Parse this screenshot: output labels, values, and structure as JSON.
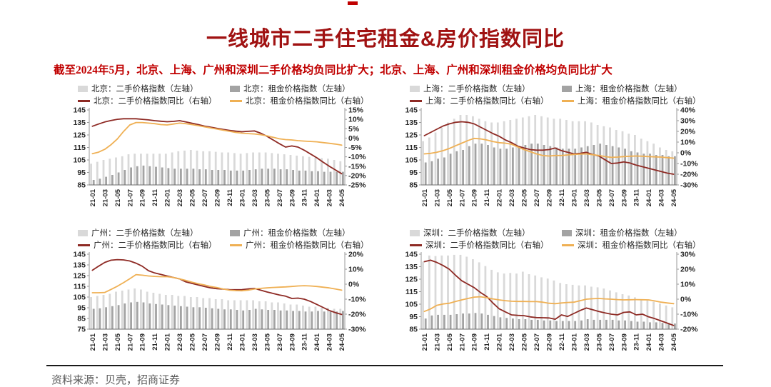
{
  "title": "一线城市二手住宅租金&房价指数同比",
  "subtitle": "截至2024年5月，北京、上海、广州和深圳二手价格均负同比扩大；北京、上海、广州和深圳租金价格均负同比扩大",
  "footer_source": "资料来源：贝壳，招商证券",
  "colors": {
    "title": "#a01212",
    "subtitle": "#c00000",
    "secondhand_bar": "#d9d9d9",
    "rent_bar": "#a3a3a3",
    "secondhand_line": "#8e2a24",
    "rent_line": "#efb054",
    "axis_text": "#262626",
    "axis_line": "#9a9a9a"
  },
  "x_axis": {
    "months": [
      "21-01",
      "21-02",
      "21-03",
      "21-04",
      "21-05",
      "21-06",
      "21-07",
      "21-08",
      "21-09",
      "21-10",
      "21-11",
      "21-12",
      "22-01",
      "22-02",
      "22-03",
      "22-04",
      "22-05",
      "22-06",
      "22-07",
      "22-08",
      "22-09",
      "22-10",
      "22-11",
      "22-12",
      "23-01",
      "23-02",
      "23-03",
      "23-04",
      "23-05",
      "23-06",
      "23-07",
      "23-08",
      "23-09",
      "23-10",
      "23-11",
      "23-12",
      "24-01",
      "24-02",
      "24-03",
      "24-04",
      "24-05"
    ],
    "ticks_shown": [
      "21-01",
      "21-03",
      "21-05",
      "21-07",
      "21-09",
      "21-11",
      "22-01",
      "22-03",
      "22-05",
      "22-07",
      "22-09",
      "22-11",
      "23-01",
      "23-03",
      "23-05",
      "23-07",
      "23-09",
      "23-11",
      "24-01",
      "24-03",
      "24-05"
    ]
  },
  "chart_data": [
    {
      "type": "bar",
      "city": "北京",
      "title": "北京二手住宅租金&房价指数同比",
      "left_axis": {
        "min": 85,
        "max": 145,
        "tick_step": 10
      },
      "right_axis": {
        "min": -25,
        "max": 15,
        "tick_step": 5,
        "unit": "%"
      },
      "series": [
        {
          "name": "北京：二手价格指数（左轴）",
          "type": "bar",
          "axis": "left",
          "color": "#d9d9d9",
          "values": [
            102,
            103.5,
            105,
            106,
            107,
            108,
            109.5,
            110,
            110,
            110,
            110,
            110,
            110,
            111,
            112,
            112.5,
            113,
            112.5,
            112,
            112,
            111.5,
            111,
            111,
            110.5,
            110,
            110.5,
            111,
            111,
            111,
            110.5,
            110,
            109.5,
            109,
            108.5,
            108,
            107.5,
            107,
            106.5,
            106,
            105,
            104
          ]
        },
        {
          "name": "北京：租金价格指数（左轴）",
          "type": "bar",
          "axis": "left",
          "color": "#a3a3a3",
          "values": [
            89,
            90,
            91.5,
            93,
            95,
            97,
            99,
            100,
            100.5,
            100,
            99.5,
            99,
            98.5,
            98,
            98,
            98,
            98,
            97.5,
            97.5,
            97,
            97,
            97,
            96.5,
            96.5,
            96.5,
            97,
            97.5,
            98,
            98,
            98,
            97.5,
            97.5,
            97,
            96.5,
            96.5,
            96,
            96,
            95.5,
            95.5,
            95.5,
            95.5
          ]
        },
        {
          "name": "北京：二手价格指数同比（右轴）",
          "type": "line",
          "axis": "right",
          "color": "#8e2a24",
          "values": [
            6.3,
            7.5,
            8.6,
            9.4,
            10,
            10.3,
            10.3,
            10.3,
            10,
            9.7,
            9.3,
            9,
            8.7,
            8.9,
            9.3,
            8.6,
            7.9,
            7.2,
            6.4,
            5.8,
            5.2,
            4.6,
            4.1,
            3.7,
            3.4,
            3.6,
            3.8,
            2.6,
            1,
            -1,
            -3,
            -4.8,
            -4.2,
            -4.8,
            -6.5,
            -8.5,
            -10.5,
            -12.8,
            -15,
            -17,
            -19
          ]
        },
        {
          "name": "北京：租金价格指数同比（右轴）",
          "type": "line",
          "axis": "right",
          "color": "#efb054",
          "values": [
            -8.3,
            -7.5,
            -6,
            -3.5,
            -0.5,
            3.5,
            7,
            8.3,
            8.3,
            8,
            7.7,
            7.2,
            7,
            7.5,
            8,
            7.7,
            7.2,
            6.6,
            6,
            5.4,
            4.8,
            4.2,
            3.6,
            3,
            2.6,
            2.4,
            2.2,
            1.8,
            1.2,
            0.4,
            -0.4,
            -0.8,
            -1,
            -1.4,
            -1.6,
            -1.8,
            -2,
            -2.4,
            -2.8,
            -3.2,
            -3.8
          ]
        }
      ]
    },
    {
      "type": "bar",
      "city": "上海",
      "title": "上海二手住宅租金&房价指数同比",
      "left_axis": {
        "min": 85,
        "max": 145,
        "tick_step": 10
      },
      "right_axis": {
        "min": -30,
        "max": 40,
        "tick_step": 10,
        "unit": "%"
      },
      "series": [
        {
          "name": "上海：二手价格指数（左轴）",
          "type": "bar",
          "axis": "left",
          "color": "#d9d9d9",
          "values": [
            120,
            123,
            127,
            131,
            135,
            138,
            141,
            141,
            140,
            138,
            136,
            135,
            135,
            136,
            137,
            138,
            139,
            140,
            141,
            140,
            139,
            138,
            138,
            137,
            136,
            136,
            136,
            135,
            133,
            132,
            131,
            129,
            128,
            126,
            125,
            122,
            120,
            118,
            115,
            113,
            112
          ]
        },
        {
          "name": "上海：租金价格指数（左轴）",
          "type": "bar",
          "axis": "left",
          "color": "#a3a3a3",
          "values": [
            103,
            104,
            106,
            107,
            110,
            112,
            113,
            116,
            118,
            118,
            117,
            115,
            114,
            114,
            115,
            116,
            117,
            118,
            118,
            117,
            116,
            115,
            114,
            114,
            114,
            115,
            116,
            117,
            118,
            117,
            116,
            115,
            114,
            112,
            111,
            110,
            110,
            109,
            109,
            108,
            108
          ]
        },
        {
          "name": "上海：二手价格指数同比（右轴）",
          "type": "line",
          "axis": "right",
          "color": "#8e2a24",
          "values": [
            16,
            19,
            22,
            25,
            27,
            28.5,
            29,
            28.5,
            27,
            24,
            21,
            18,
            15.5,
            12,
            9.5,
            6.2,
            4.5,
            3,
            2.5,
            2.5,
            3,
            4.5,
            2,
            0.5,
            -1,
            -0.5,
            0.5,
            -1.5,
            -3,
            -6.5,
            -10,
            -9.5,
            -8.5,
            -9.5,
            -11.5,
            -13,
            -14.5,
            -16,
            -17.5,
            -19,
            -20
          ]
        },
        {
          "name": "上海：租金价格指数同比（右轴）",
          "type": "line",
          "axis": "right",
          "color": "#efb054",
          "values": [
            -1,
            -0.5,
            0.5,
            2,
            4,
            6.5,
            9,
            11.5,
            13.5,
            13,
            12,
            10.5,
            9.5,
            9,
            8,
            5.5,
            3,
            1,
            -1,
            -2.5,
            -3,
            -2.5,
            -2.5,
            -2,
            -1.5,
            -1.2,
            -1,
            -1.8,
            -2.5,
            -3.5,
            -4.3,
            -4,
            -3.5,
            -3.2,
            -3,
            -3.2,
            -3.5,
            -3.8,
            -4,
            -4.5,
            -5
          ]
        }
      ]
    },
    {
      "type": "bar",
      "city": "广州",
      "title": "广州二手住宅租金&房价指数同比",
      "left_axis": {
        "min": 75,
        "max": 145,
        "tick_step": 10
      },
      "right_axis": {
        "min": -30,
        "max": 20,
        "tick_step": 10,
        "unit": "%"
      },
      "series": [
        {
          "name": "广州：二手价格指数（左轴）",
          "type": "bar",
          "axis": "left",
          "color": "#d9d9d9",
          "values": [
            105,
            106,
            107,
            108,
            110,
            111,
            112,
            113,
            112,
            110,
            109,
            108,
            107,
            107,
            106,
            106,
            105,
            105,
            104,
            104,
            103,
            103,
            102,
            102,
            102,
            102,
            102,
            101,
            101,
            100,
            100,
            99,
            98,
            98,
            97,
            96,
            96,
            95,
            95,
            94,
            94
          ]
        },
        {
          "name": "广州：租金价格指数（左轴）",
          "type": "bar",
          "axis": "left",
          "color": "#a3a3a3",
          "values": [
            94,
            94.5,
            95.5,
            96.5,
            97.5,
            99,
            100,
            100.5,
            100,
            99,
            98.5,
            98,
            97.5,
            97,
            96.5,
            96,
            95.5,
            95.5,
            95,
            94.5,
            94,
            93.5,
            93.5,
            93,
            92.5,
            93,
            94,
            93.5,
            93,
            93,
            92.5,
            92.5,
            92,
            92,
            91.5,
            91.5,
            92,
            91.5,
            91.5,
            91.5,
            92
          ]
        },
        {
          "name": "广州：二手价格指数同比（右轴）",
          "type": "line",
          "axis": "right",
          "color": "#8e2a24",
          "values": [
            9.3,
            12,
            14.5,
            16,
            16.4,
            16.2,
            15.5,
            14,
            12,
            9,
            7.5,
            6.5,
            5.5,
            4.5,
            3.5,
            1.5,
            0.5,
            -0.5,
            -1.5,
            -2.5,
            -3,
            -3.3,
            -3.6,
            -3.7,
            -3.6,
            -3.2,
            -2.8,
            -4,
            -5.2,
            -6.2,
            -7.2,
            -8,
            -9.5,
            -9.3,
            -10,
            -11.5,
            -13.5,
            -15.5,
            -17.5,
            -19,
            -20.2
          ]
        },
        {
          "name": "广州：租金价格指数同比（右轴）",
          "type": "line",
          "axis": "right",
          "color": "#efb054",
          "values": [
            -5.7,
            -5.7,
            -5.5,
            -3.5,
            -1.4,
            1,
            3.6,
            6.4,
            6,
            5.5,
            5.2,
            5,
            5,
            4.5,
            3.5,
            2.5,
            1.3,
            0.3,
            -0.5,
            -1.5,
            -2.3,
            -3.2,
            -4,
            -4.3,
            -4.4,
            -4,
            -3.2,
            -2.8,
            -2.5,
            -2.2,
            -2,
            -1.8,
            -1.5,
            -1.2,
            -1,
            -1.2,
            -1.5,
            -2,
            -2.5,
            -3.2,
            -4
          ]
        }
      ]
    },
    {
      "type": "bar",
      "city": "深圳",
      "title": "深圳二手住宅租金&房价指数同比",
      "left_axis": {
        "min": 85,
        "max": 145,
        "tick_step": 10
      },
      "right_axis": {
        "min": -20,
        "max": 30,
        "tick_step": 10,
        "unit": "%"
      },
      "series": [
        {
          "name": "深圳：二手价格指数（左轴）",
          "type": "bar",
          "axis": "left",
          "color": "#d9d9d9",
          "values": [
            139,
            144,
            143.5,
            144,
            144,
            144.5,
            144.5,
            143,
            141,
            138.5,
            135.5,
            132.5,
            130.5,
            129.5,
            130,
            129.5,
            131,
            129,
            128,
            126.5,
            125.5,
            124,
            122,
            121,
            120.5,
            120,
            120,
            119,
            118.5,
            117.5,
            116,
            114.5,
            113,
            112,
            110.5,
            109,
            108,
            107,
            105.5,
            104,
            102.5
          ]
        },
        {
          "name": "深圳：租金价格指数（左轴）",
          "type": "bar",
          "axis": "left",
          "color": "#a3a3a3",
          "values": [
            93.5,
            96,
            96.5,
            96.5,
            96.5,
            97,
            97.5,
            97.5,
            98,
            97.5,
            96.5,
            95.5,
            94.5,
            94,
            93.5,
            93,
            93,
            92.5,
            92.5,
            92,
            92,
            91.5,
            91.5,
            91.5,
            91.5,
            92,
            93,
            92.5,
            92.5,
            92.5,
            92.5,
            92,
            92,
            91.5,
            91,
            91,
            90.5,
            90.5,
            90,
            90,
            89.5
          ]
        },
        {
          "name": "深圳：二手价格指数同比（右轴）",
          "type": "line",
          "axis": "right",
          "color": "#8e2a24",
          "values": [
            25,
            26,
            24.5,
            22.5,
            20,
            16,
            12.3,
            10,
            7.7,
            4.5,
            1.8,
            -2.5,
            -6.4,
            -8.5,
            -10.5,
            -10.8,
            -11,
            -11.8,
            -12.3,
            -12.4,
            -12.5,
            -13.4,
            -10.5,
            -11.5,
            -9.5,
            -7.5,
            -5.9,
            -7,
            -8.2,
            -9.2,
            -10,
            -10.5,
            -8.8,
            -8.5,
            -10.5,
            -10,
            -11.8,
            -13,
            -14.5,
            -16,
            -17.5
          ]
        },
        {
          "name": "深圳：租金价格指数同比（右轴）",
          "type": "line",
          "axis": "right",
          "color": "#efb054",
          "values": [
            -8.2,
            -6.5,
            -4.1,
            -3.2,
            -2.7,
            -1.5,
            -0.5,
            0.5,
            1.4,
            1.6,
            1,
            0.2,
            -0.5,
            -1,
            -1.4,
            -1.5,
            -1.5,
            -1.6,
            -1.6,
            -2,
            -2.7,
            -3,
            -2.5,
            -2.2,
            -2,
            -1,
            0,
            0.3,
            0.5,
            0.2,
            0,
            -0.3,
            -0.5,
            -0.4,
            -0.3,
            -0.4,
            -0.5,
            -1.2,
            -2,
            -2.5,
            -3
          ]
        }
      ]
    }
  ]
}
